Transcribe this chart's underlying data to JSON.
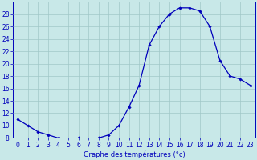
{
  "x": [
    0,
    1,
    2,
    3,
    4,
    5,
    6,
    7,
    8,
    9,
    10,
    11,
    12,
    13,
    14,
    15,
    16,
    17,
    18,
    19,
    20,
    21,
    22,
    23
  ],
  "y": [
    11,
    10,
    9,
    8.5,
    8,
    7.5,
    8,
    7.5,
    8,
    8.5,
    10,
    13,
    16.5,
    23,
    26,
    28,
    29,
    29,
    28.5,
    26,
    20.5,
    18,
    17.5,
    16.5
  ],
  "line_color": "#0000bb",
  "marker": "D",
  "marker_size": 1.8,
  "bg_color": "#c8e8e8",
  "grid_color": "#a0c8c8",
  "xlabel": "Graphe des températures (°c)",
  "ylim": [
    8,
    30
  ],
  "yticks": [
    8,
    10,
    12,
    14,
    16,
    18,
    20,
    22,
    24,
    26,
    28
  ],
  "xlim": [
    -0.5,
    23.5
  ],
  "xticks": [
    0,
    1,
    2,
    3,
    4,
    5,
    6,
    7,
    8,
    9,
    10,
    11,
    12,
    13,
    14,
    15,
    16,
    17,
    18,
    19,
    20,
    21,
    22,
    23
  ],
  "xtick_labels": [
    "0",
    "1",
    "2",
    "3",
    "4",
    "5",
    "6",
    "7",
    "8",
    "9",
    "10",
    "11",
    "12",
    "13",
    "14",
    "15",
    "16",
    "17",
    "18",
    "19",
    "20",
    "21",
    "22",
    "23"
  ],
  "axis_color": "#0000bb",
  "tick_color": "#0000bb",
  "label_color": "#0000bb",
  "label_fontsize": 6.0,
  "tick_fontsize": 5.5,
  "linewidth": 0.9
}
